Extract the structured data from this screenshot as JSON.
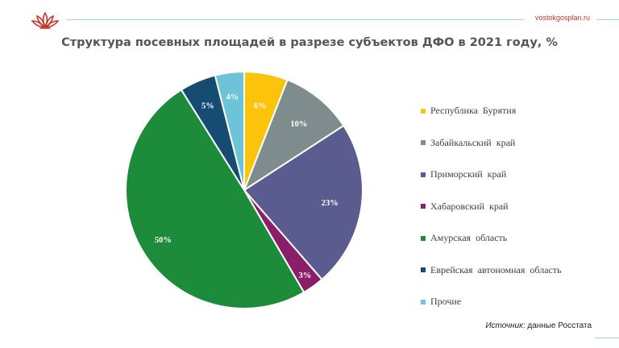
{
  "header": {
    "site": "vostokgosplan.ru",
    "accent_color": "#c0392b",
    "line_color": "#9fd3df"
  },
  "logo": {
    "icon": "lotus-logo-icon",
    "color": "#c0392b"
  },
  "chart_data": {
    "type": "pie",
    "title": "Структура посевных площадей в разрезе субъектов ДФО в 2021 году, %",
    "labels": [
      "Республика Бурятия",
      "Забайкальский край",
      "Приморский край",
      "Хабаровский край",
      "Амурская область",
      "Еврейская автономная область",
      "Прочие"
    ],
    "values": [
      6,
      10,
      23,
      3,
      50,
      5,
      4
    ],
    "value_labels": [
      "6%",
      "10%",
      "23%",
      "3%",
      "50%",
      "5%",
      "4%"
    ],
    "colors": [
      "#fcc30b",
      "#7f8c8d",
      "#5a5b8e",
      "#8b1e6a",
      "#1d8c3a",
      "#164b72",
      "#6cc4d6"
    ],
    "label_colors": [
      "#ffffff",
      "#ffffff",
      "#ffffff",
      "#ffffff",
      "#ffffff",
      "#ffffff",
      "#ffffff"
    ],
    "start": "12 o'clock",
    "direction": "clockwise",
    "legend_position": "right"
  },
  "source": {
    "prefix": "Источник",
    "text": ": данные Росстата"
  }
}
